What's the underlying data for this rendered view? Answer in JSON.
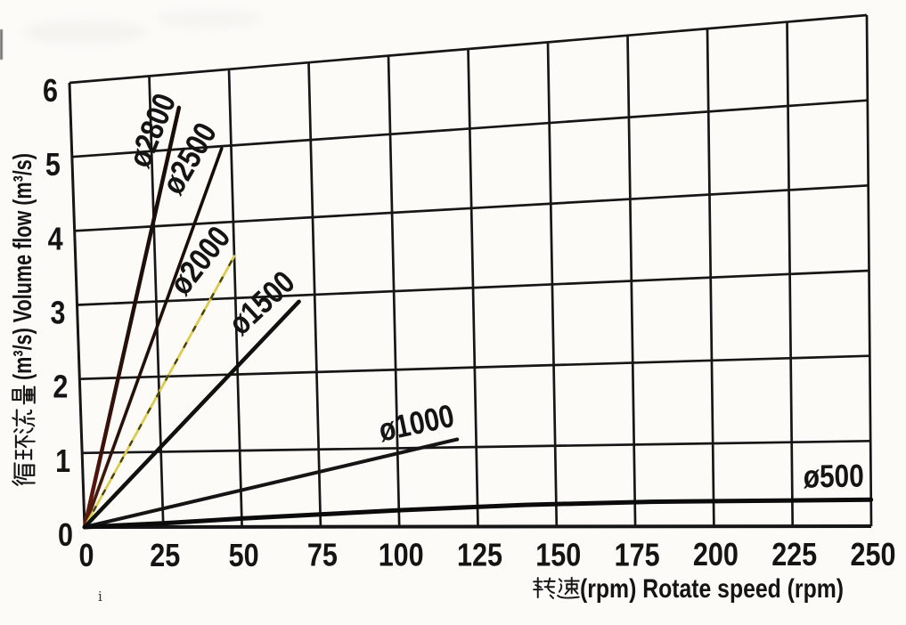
{
  "chart_data": {
    "type": "line",
    "title": "",
    "xlabel_cjk": "转速",
    "xlabel_latin": "(rpm) Rotate speed (rpm)",
    "xlabel_full": "转速(rpm) Rotate speed (rpm)",
    "ylabel_cjk": "循环流量",
    "ylabel_latin": "(m³/s) Volume flow (m³/s)",
    "ylabel_full": "循环流量(m³/s) Volume flow (m³/s)",
    "xlim": [
      0,
      250
    ],
    "ylim": [
      0,
      6
    ],
    "x_ticks": [
      0,
      25,
      50,
      75,
      100,
      125,
      150,
      175,
      200,
      225,
      250
    ],
    "y_ticks": [
      0,
      1,
      2,
      3,
      4,
      5,
      6
    ],
    "grid": true,
    "legend_position": "labels-on-lines",
    "series": [
      {
        "name": "ø2800",
        "color": "#47120c",
        "points": [
          [
            0,
            0
          ],
          [
            34,
            5.55
          ]
        ]
      },
      {
        "name": "ø2500",
        "color": "#2a130c",
        "points": [
          [
            0,
            0
          ],
          [
            47,
            4.97
          ]
        ]
      },
      {
        "name": "ø2000",
        "color": "#dccb50",
        "points": [
          [
            0,
            0
          ],
          [
            50,
            3.55
          ]
        ]
      },
      {
        "name": "ø1500",
        "color": "#101010",
        "points": [
          [
            0,
            0
          ],
          [
            70,
            2.92
          ]
        ]
      },
      {
        "name": "ø1000",
        "color": "#151515",
        "points": [
          [
            0,
            0
          ],
          [
            119,
            1.1
          ]
        ]
      },
      {
        "name": "ø500",
        "color": "#0b0b0b",
        "points": [
          [
            0,
            0
          ],
          [
            25,
            0.05
          ],
          [
            50,
            0.11
          ],
          [
            75,
            0.16
          ],
          [
            100,
            0.21
          ],
          [
            140,
            0.27
          ],
          [
            180,
            0.3
          ],
          [
            250,
            0.31
          ]
        ]
      }
    ]
  },
  "artifacts": {
    "i_mark": "i"
  }
}
